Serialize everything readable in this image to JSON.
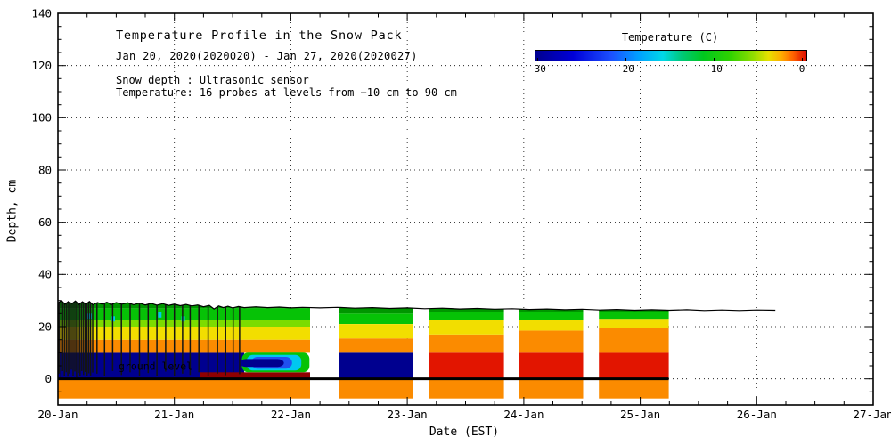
{
  "header": {
    "title": "Temperature Profile in the Snow Pack",
    "subtitle": "Jan 20, 2020(2020020) - Jan 27, 2020(2020027)",
    "note1": "Snow depth : Ultrasonic sensor",
    "note2": "Temperature: 16 probes at levels from −10 cm to 90 cm"
  },
  "axes": {
    "x_label": "Date (EST)",
    "y_label": "Depth, cm",
    "x_ticks": [
      {
        "day": 20,
        "label": "20-Jan"
      },
      {
        "day": 21,
        "label": "21-Jan"
      },
      {
        "day": 22,
        "label": "22-Jan"
      },
      {
        "day": 23,
        "label": "23-Jan"
      },
      {
        "day": 24,
        "label": "24-Jan"
      },
      {
        "day": 25,
        "label": "25-Jan"
      },
      {
        "day": 26,
        "label": "26-Jan"
      },
      {
        "day": 27,
        "label": "27-Jan"
      }
    ],
    "y_ticks": [
      {
        "depth": 0,
        "label": "0"
      },
      {
        "depth": 20,
        "label": "20"
      },
      {
        "depth": 40,
        "label": "40"
      },
      {
        "depth": 60,
        "label": "60"
      },
      {
        "depth": 80,
        "label": "80"
      },
      {
        "depth": 100,
        "label": "100"
      },
      {
        "depth": 120,
        "label": "120"
      },
      {
        "depth": 140,
        "label": "140"
      }
    ],
    "x_range_days": [
      20,
      27
    ],
    "y_range_depth_cm": [
      -10,
      140
    ]
  },
  "colorbar": {
    "title": "Temperature (C)",
    "min": -30.3,
    "max": 0.6,
    "ticks": [
      {
        "v": -30,
        "label": "−30"
      },
      {
        "v": -20,
        "label": "−20"
      },
      {
        "v": -10,
        "label": "−10"
      },
      {
        "v": 0,
        "label": "0"
      }
    ],
    "stops": [
      [
        0.0,
        "#00008F"
      ],
      [
        0.14,
        "#0000D8"
      ],
      [
        0.28,
        "#1C50FF"
      ],
      [
        0.38,
        "#00A0FF"
      ],
      [
        0.47,
        "#00D8E8"
      ],
      [
        0.54,
        "#00C878"
      ],
      [
        0.62,
        "#00C81E"
      ],
      [
        0.72,
        "#30D200"
      ],
      [
        0.8,
        "#8CDC00"
      ],
      [
        0.86,
        "#E6E100"
      ],
      [
        0.91,
        "#FFAA00"
      ],
      [
        0.95,
        "#FF6400"
      ],
      [
        1.0,
        "#DC0A00"
      ]
    ]
  },
  "annotations": {
    "ground_level": {
      "label": "ground level",
      "day": 20.52,
      "depth": 3.4
    }
  },
  "chart_data": {
    "type": "heatmap",
    "title": "Temperature Profile in the Snow Pack",
    "xlabel": "Date (EST)",
    "ylabel": "Depth, cm",
    "x_range_days": [
      20,
      27
    ],
    "depth_range_cm": [
      -10,
      140
    ],
    "temperature_range_c": [
      -30,
      0
    ],
    "palette": {
      "navy": "#00008F",
      "blue": "#2050F0",
      "cyan": "#00C8F0",
      "green": "#06C206",
      "ltgreen": "#7CDC00",
      "dkgreen": "#009600",
      "yellow": "#F2DE00",
      "orange": "#FB8B00",
      "red": "#E21500",
      "maroon": "#8F0000",
      "spike": "#141414"
    },
    "grid": {
      "x_days": [
        21,
        22,
        23,
        24,
        25,
        26
      ],
      "y_depths": [
        0,
        20,
        40,
        60,
        80,
        100,
        120,
        140
      ]
    },
    "data_gaps_days": [
      [
        22.165,
        22.41
      ],
      [
        23.05,
        23.185
      ],
      [
        23.83,
        23.955
      ],
      [
        24.51,
        24.645
      ]
    ],
    "data_end_day": 25.245,
    "ground_line": {
      "depth": 0,
      "x0": 20.0,
      "x1": 25.245
    },
    "bands": [
      [
        20.0,
        22.165,
        -7.5,
        0,
        "orange"
      ],
      [
        22.41,
        23.05,
        -7.5,
        0,
        "orange"
      ],
      [
        23.185,
        23.83,
        -7.5,
        0,
        "orange"
      ],
      [
        23.955,
        24.51,
        -7.5,
        0,
        "orange"
      ],
      [
        24.645,
        25.245,
        -7.5,
        0,
        "orange"
      ],
      [
        20.0,
        21.6,
        0,
        10,
        "navy"
      ],
      [
        21.22,
        22.165,
        0,
        2.5,
        "maroon"
      ],
      [
        20.0,
        22.165,
        10,
        15,
        "orange"
      ],
      [
        20.0,
        22.165,
        15,
        20,
        "yellow"
      ],
      [
        20.0,
        22.165,
        20,
        22.5,
        "ltgreen"
      ],
      [
        20.0,
        22.165,
        22.5,
        27,
        "green"
      ],
      [
        20.0,
        22.165,
        27,
        31,
        "dkgreen"
      ],
      [
        22.41,
        23.05,
        0,
        10,
        "navy"
      ],
      [
        22.41,
        23.05,
        10,
        15.5,
        "orange"
      ],
      [
        22.41,
        23.05,
        15.5,
        21,
        "yellow"
      ],
      [
        22.41,
        23.05,
        21,
        25,
        "green"
      ],
      [
        22.41,
        23.05,
        25,
        31,
        "dkgreen"
      ],
      [
        23.185,
        23.83,
        0,
        10,
        "red"
      ],
      [
        23.185,
        23.83,
        10,
        17,
        "orange"
      ],
      [
        23.185,
        23.83,
        17,
        22.5,
        "yellow"
      ],
      [
        23.185,
        23.83,
        22.5,
        25.5,
        "green"
      ],
      [
        23.185,
        23.83,
        25.5,
        31,
        "dkgreen"
      ],
      [
        23.955,
        24.51,
        0,
        10,
        "red"
      ],
      [
        23.955,
        24.51,
        10,
        18.5,
        "orange"
      ],
      [
        23.955,
        24.51,
        18.5,
        22.5,
        "yellow"
      ],
      [
        23.955,
        24.51,
        22.5,
        25.5,
        "green"
      ],
      [
        23.955,
        24.51,
        25.5,
        31,
        "dkgreen"
      ],
      [
        24.645,
        25.245,
        0,
        10,
        "red"
      ],
      [
        24.645,
        25.245,
        10,
        19.5,
        "orange"
      ],
      [
        24.645,
        25.245,
        19.5,
        23,
        "yellow"
      ],
      [
        24.645,
        25.245,
        23,
        25.5,
        "green"
      ],
      [
        24.645,
        25.245,
        25.5,
        31,
        "dkgreen"
      ]
    ],
    "tongue": [
      [
        21.58,
        22.16,
        2.5,
        10,
        "green"
      ],
      [
        21.62,
        22.09,
        3.2,
        9.2,
        "cyan"
      ],
      [
        21.66,
        22.01,
        3.9,
        8.4,
        "blue"
      ],
      [
        21.56,
        21.94,
        4.6,
        7.6,
        "navy"
      ]
    ],
    "specks": [
      [
        20.25,
        20.29,
        23,
        25,
        "cyan"
      ],
      [
        20.46,
        20.49,
        22,
        24,
        "cyan"
      ],
      [
        20.86,
        20.89,
        23.5,
        25.5,
        "cyan"
      ],
      [
        21.06,
        21.09,
        22,
        24,
        "cyan"
      ]
    ],
    "noise_spikes": [
      [
        20.01,
        2
      ],
      [
        20.025,
        0.5
      ],
      [
        20.04,
        3
      ],
      [
        20.055,
        1
      ],
      [
        20.07,
        2.5
      ],
      [
        20.085,
        0.8
      ],
      [
        20.1,
        2
      ],
      [
        20.115,
        3.5
      ],
      [
        20.13,
        1.2
      ],
      [
        20.145,
        2.8
      ],
      [
        20.16,
        0.6
      ],
      [
        20.175,
        2.2
      ],
      [
        20.19,
        1
      ],
      [
        20.205,
        3
      ],
      [
        20.22,
        1.5
      ],
      [
        20.235,
        2.6
      ],
      [
        20.25,
        0.9
      ],
      [
        20.265,
        2.1
      ],
      [
        20.28,
        1.3
      ],
      [
        20.298,
        2.4
      ],
      [
        20.335,
        2
      ],
      [
        20.4,
        1
      ],
      [
        20.47,
        3
      ],
      [
        20.545,
        1.5
      ],
      [
        20.62,
        2.5
      ],
      [
        20.7,
        1
      ],
      [
        20.775,
        2.2
      ],
      [
        20.85,
        1.2
      ],
      [
        20.925,
        2.8
      ],
      [
        21.0,
        1
      ],
      [
        21.07,
        2
      ],
      [
        21.135,
        1.5
      ],
      [
        21.21,
        2.5
      ],
      [
        21.29,
        1
      ],
      [
        21.37,
        2
      ],
      [
        21.44,
        1.4
      ],
      [
        21.505,
        2.6
      ],
      [
        21.56,
        1.8
      ]
    ],
    "snow_line": [
      [
        20.0,
        29.0
      ],
      [
        20.03,
        30.0
      ],
      [
        20.06,
        28.6
      ],
      [
        20.09,
        29.6
      ],
      [
        20.12,
        28.8
      ],
      [
        20.15,
        29.8
      ],
      [
        20.18,
        28.5
      ],
      [
        20.21,
        29.5
      ],
      [
        20.24,
        28.6
      ],
      [
        20.27,
        29.6
      ],
      [
        20.3,
        28.4
      ],
      [
        20.34,
        29.2
      ],
      [
        20.38,
        28.6
      ],
      [
        20.42,
        29.3
      ],
      [
        20.46,
        28.5
      ],
      [
        20.5,
        29.2
      ],
      [
        20.55,
        28.6
      ],
      [
        20.6,
        29.1
      ],
      [
        20.65,
        28.4
      ],
      [
        20.7,
        29.0
      ],
      [
        20.75,
        28.3
      ],
      [
        20.8,
        28.9
      ],
      [
        20.85,
        28.2
      ],
      [
        20.9,
        28.8
      ],
      [
        20.95,
        28.1
      ],
      [
        21.0,
        28.6
      ],
      [
        21.05,
        28.0
      ],
      [
        21.1,
        28.5
      ],
      [
        21.15,
        27.9
      ],
      [
        21.2,
        28.3
      ],
      [
        21.25,
        27.6
      ],
      [
        21.3,
        28.1
      ],
      [
        21.34,
        26.8
      ],
      [
        21.38,
        27.9
      ],
      [
        21.42,
        27.3
      ],
      [
        21.46,
        27.8
      ],
      [
        21.5,
        27.2
      ],
      [
        21.55,
        27.7
      ],
      [
        21.6,
        27.3
      ],
      [
        21.7,
        27.6
      ],
      [
        21.8,
        27.3
      ],
      [
        21.9,
        27.5
      ],
      [
        22.0,
        27.2
      ],
      [
        22.1,
        27.4
      ],
      [
        22.25,
        27.2
      ],
      [
        22.4,
        27.4
      ],
      [
        22.55,
        27.1
      ],
      [
        22.7,
        27.3
      ],
      [
        22.85,
        27.0
      ],
      [
        23.0,
        27.2
      ],
      [
        23.15,
        26.9
      ],
      [
        23.3,
        27.1
      ],
      [
        23.45,
        26.8
      ],
      [
        23.6,
        27.0
      ],
      [
        23.75,
        26.7
      ],
      [
        23.9,
        26.9
      ],
      [
        24.05,
        26.6
      ],
      [
        24.2,
        26.8
      ],
      [
        24.35,
        26.5
      ],
      [
        24.5,
        26.7
      ],
      [
        24.65,
        26.4
      ],
      [
        24.8,
        26.6
      ],
      [
        24.95,
        26.3
      ],
      [
        25.1,
        26.5
      ],
      [
        25.25,
        26.3
      ],
      [
        25.4,
        26.5
      ],
      [
        25.55,
        26.2
      ],
      [
        25.7,
        26.4
      ],
      [
        25.85,
        26.2
      ],
      [
        26.0,
        26.4
      ],
      [
        26.16,
        26.3
      ]
    ]
  }
}
